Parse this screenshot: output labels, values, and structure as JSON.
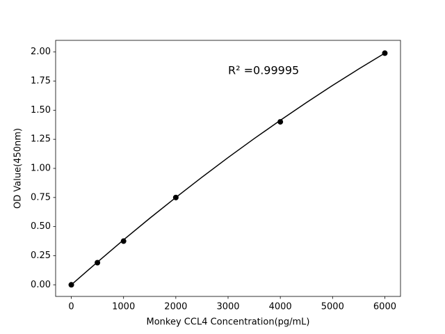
{
  "chart_data": {
    "type": "scatter",
    "xlabel": "Monkey CCL4 Concentration(pg/mL)",
    "ylabel": "OD Value(450nm)",
    "annotation": "R² =0.99995",
    "xlim": [
      -300,
      6300
    ],
    "ylim": [
      -0.1,
      2.1
    ],
    "xticks": [
      0,
      1000,
      2000,
      3000,
      4000,
      5000,
      6000
    ],
    "yticks": [
      {
        "value": 0,
        "label": "0.00"
      },
      {
        "value": 0.25,
        "label": "0.25"
      },
      {
        "value": 0.5,
        "label": "0.50"
      },
      {
        "value": 0.75,
        "label": "0.75"
      },
      {
        "value": 1,
        "label": "1.00"
      },
      {
        "value": 1.25,
        "label": "1.25"
      },
      {
        "value": 1.5,
        "label": "1.50"
      },
      {
        "value": 1.75,
        "label": "1.75"
      },
      {
        "value": 2,
        "label": "2.00"
      }
    ],
    "grid": false,
    "series": [
      {
        "type": "line",
        "color": "#000000",
        "x": [
          0,
          500,
          1000,
          1500,
          2000,
          2500,
          3000,
          3500,
          4000,
          4500,
          5000,
          5500,
          6000
        ],
        "values": [
          0,
          0.195,
          0.386,
          0.571,
          0.75,
          0.924,
          1.093,
          1.256,
          1.413,
          1.566,
          1.713,
          1.854,
          1.99
        ]
      },
      {
        "type": "scatter",
        "color": "#000000",
        "x": [
          0,
          500,
          1000,
          2000,
          4000,
          6000
        ],
        "values": [
          0,
          0.19,
          0.375,
          0.75,
          1.4,
          1.99
        ]
      }
    ]
  }
}
